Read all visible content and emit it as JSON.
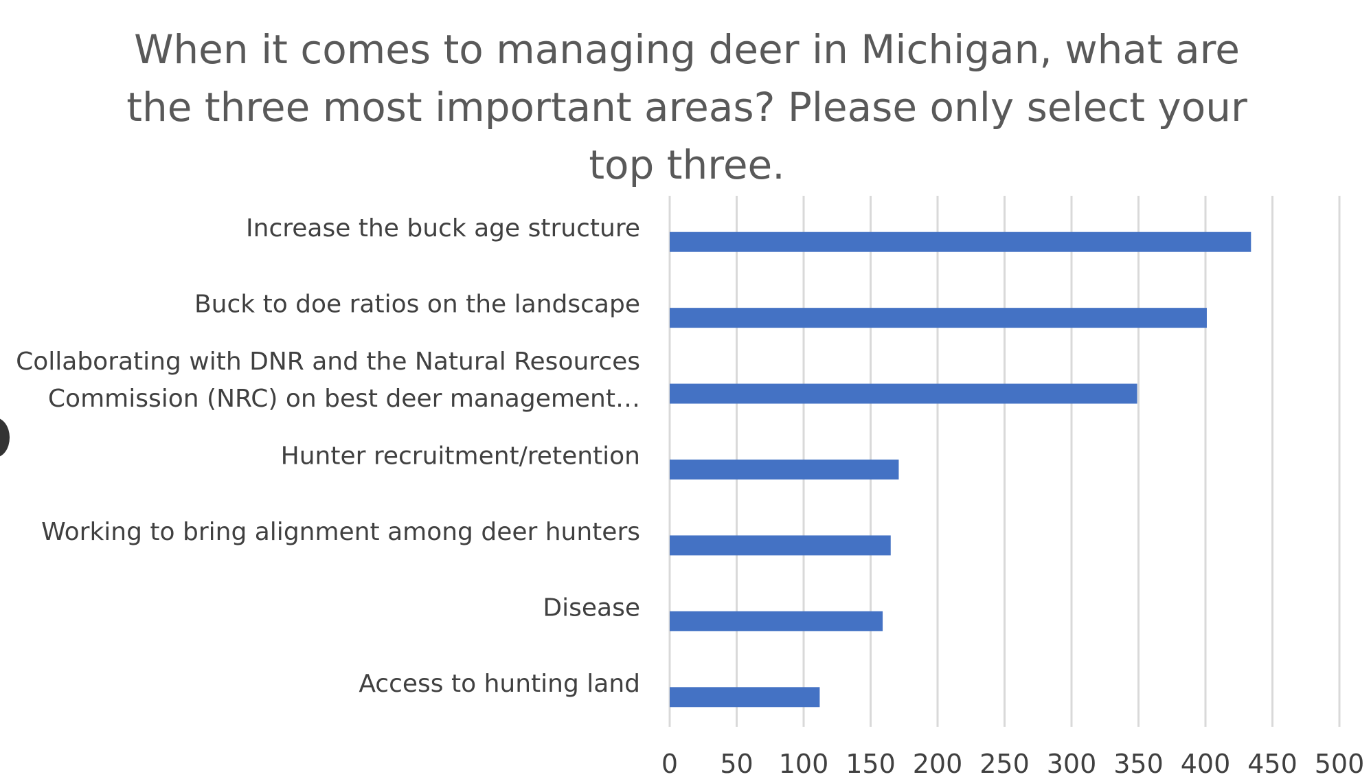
{
  "chart_data": {
    "type": "bar",
    "orientation": "horizontal",
    "title": "When it comes to managing deer in Michigan, what are the three most important areas? Please only select your top three.",
    "categories": [
      "Increase the buck age structure",
      "Buck to doe ratios on the landscape",
      "Collaborating with DNR and the Natural Resources Commission (NRC) on best deer management…",
      "Hunter recruitment/retention",
      "Working to bring alignment among deer hunters",
      "Disease",
      "Access to hunting land"
    ],
    "category_label_lines": [
      [
        "Increase the buck age structure"
      ],
      [
        "Buck to doe ratios on the landscape"
      ],
      [
        "Collaborating with DNR and the Natural Resources",
        "Commission (NRC) on best deer management…"
      ],
      [
        "Hunter recruitment/retention"
      ],
      [
        "Working to bring alignment among deer hunters"
      ],
      [
        "Disease"
      ],
      [
        "Access to hunting land"
      ]
    ],
    "values": [
      434,
      401,
      349,
      171,
      165,
      159,
      112
    ],
    "xlim": [
      0,
      500
    ],
    "xticks": [
      0,
      50,
      100,
      150,
      200,
      250,
      300,
      350,
      400,
      450,
      500
    ],
    "xlabel": "",
    "ylabel": "",
    "grid": "vertical",
    "legend": "none",
    "colors": {
      "bar": "#4472c4",
      "grid": "#d9d9d9",
      "text": "#404040",
      "title": "#595959"
    }
  }
}
